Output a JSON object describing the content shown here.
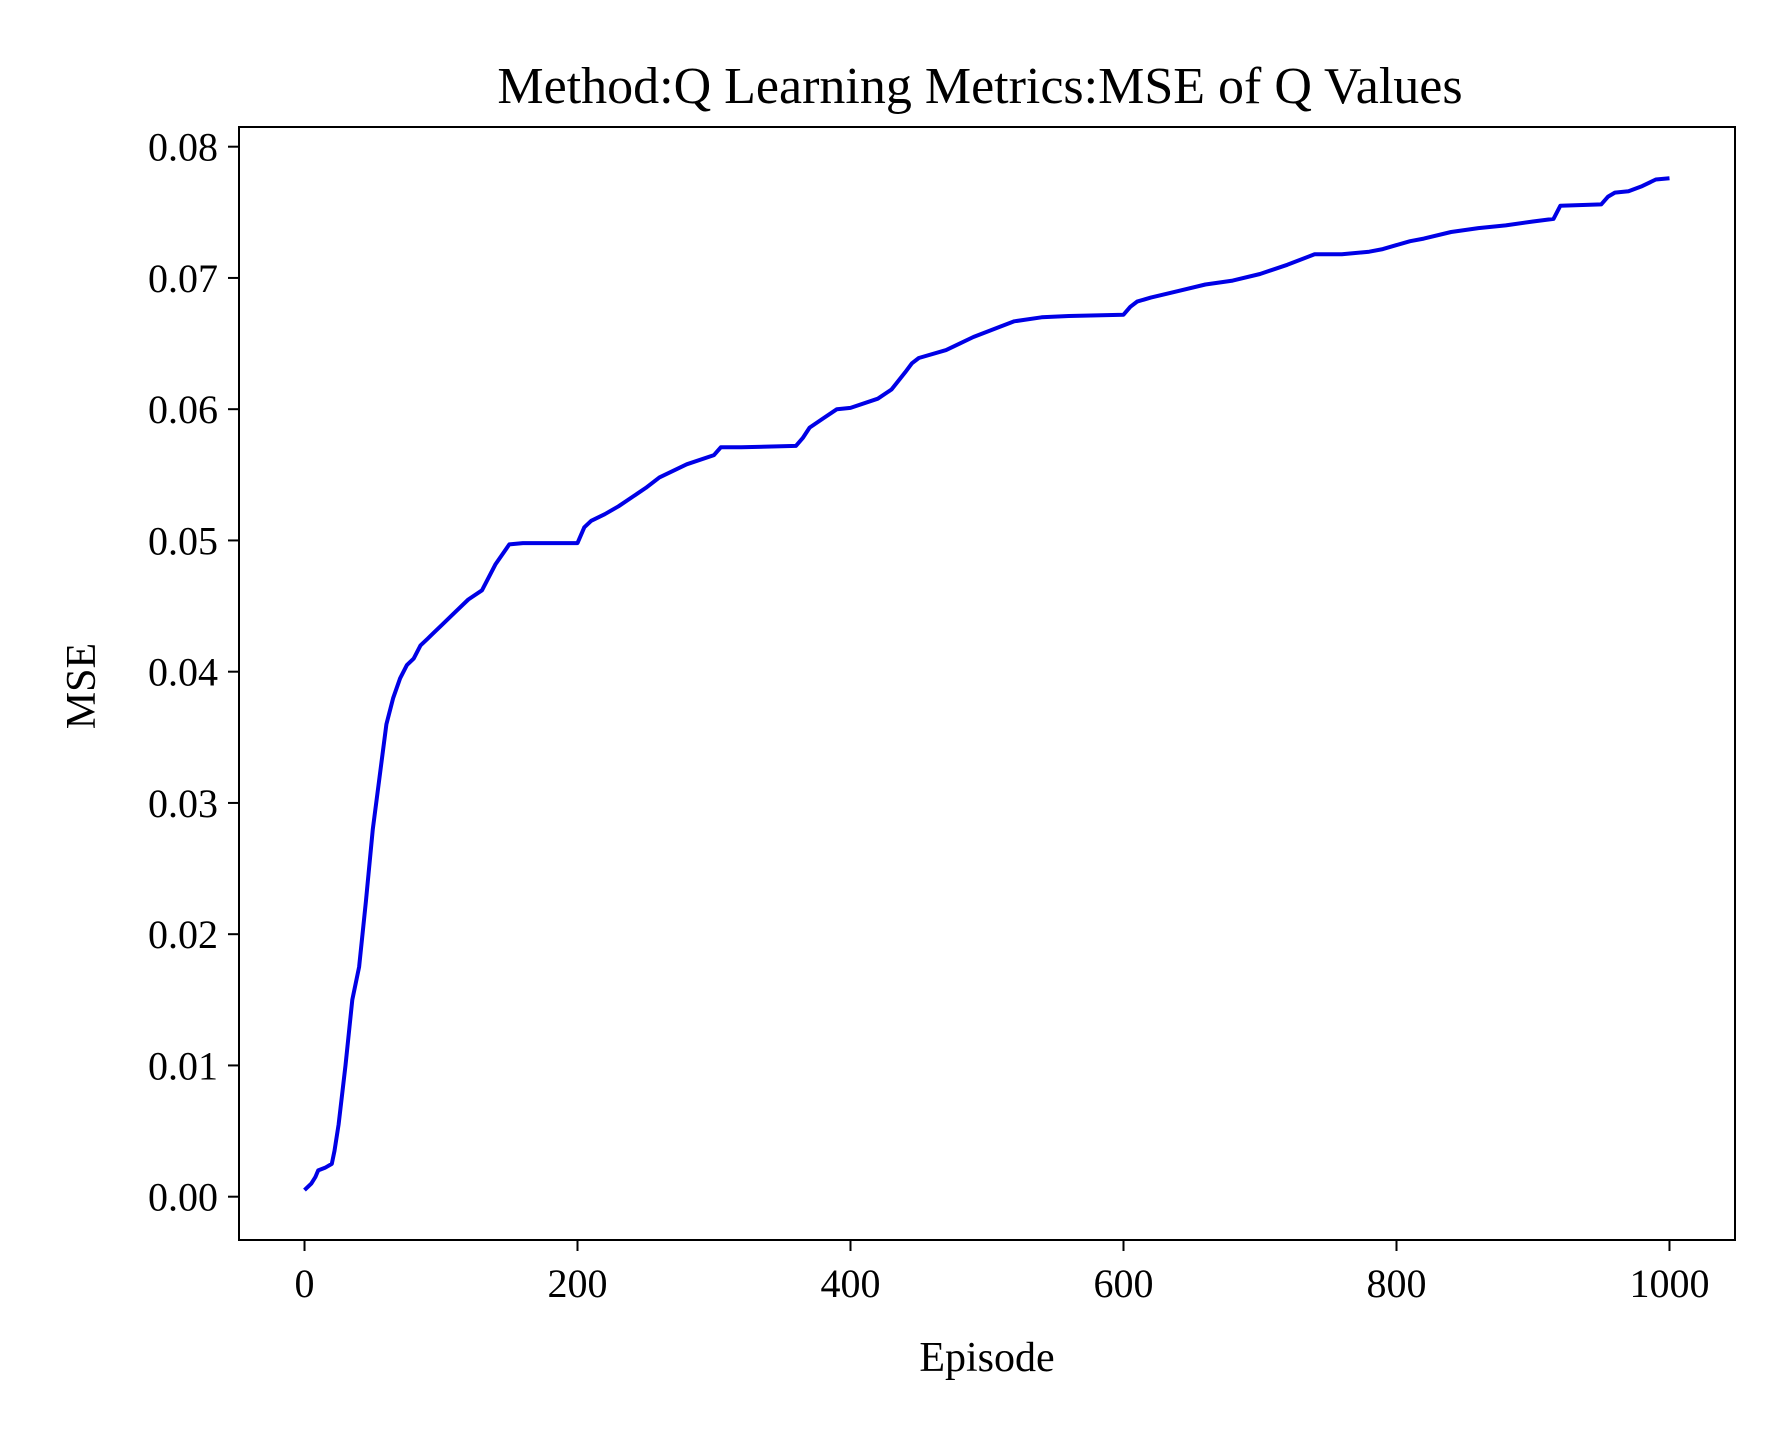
{
  "chart_data": {
    "type": "line",
    "title": "Method:Q Learning   Metrics:MSE of Q Values",
    "xlabel": "Episode",
    "ylabel": "MSE",
    "xlim": [
      -48,
      1048
    ],
    "ylim": [
      -0.0033,
      0.0815
    ],
    "xticks": [
      0,
      200,
      400,
      600,
      800,
      1000
    ],
    "yticks": [
      0.0,
      0.01,
      0.02,
      0.03,
      0.04,
      0.05,
      0.06,
      0.07,
      0.08
    ],
    "xtick_labels": [
      "0",
      "200",
      "400",
      "600",
      "800",
      "1000"
    ],
    "ytick_labels": [
      "0.00",
      "0.01",
      "0.02",
      "0.03",
      "0.04",
      "0.05",
      "0.06",
      "0.07",
      "0.08"
    ],
    "grid": false,
    "legend": "none",
    "series": [
      {
        "color": "#0000e6",
        "x": [
          0,
          5,
          8,
          10,
          15,
          20,
          22,
          25,
          30,
          35,
          40,
          45,
          50,
          55,
          60,
          65,
          70,
          75,
          80,
          85,
          90,
          95,
          100,
          110,
          120,
          130,
          140,
          150,
          160,
          200,
          205,
          210,
          220,
          230,
          250,
          260,
          280,
          300,
          305,
          320,
          360,
          365,
          370,
          380,
          390,
          400,
          420,
          430,
          440,
          445,
          450,
          470,
          480,
          490,
          510,
          520,
          540,
          560,
          600,
          605,
          610,
          620,
          640,
          660,
          680,
          700,
          720,
          740,
          760,
          780,
          790,
          800,
          810,
          820,
          840,
          860,
          880,
          900,
          915,
          920,
          950,
          955,
          960,
          970,
          980,
          990,
          1000
        ],
        "y": [
          0.0005,
          0.001,
          0.0015,
          0.002,
          0.0022,
          0.0025,
          0.0035,
          0.0055,
          0.01,
          0.015,
          0.0175,
          0.0225,
          0.028,
          0.032,
          0.036,
          0.038,
          0.0395,
          0.0405,
          0.041,
          0.042,
          0.0425,
          0.043,
          0.0435,
          0.0445,
          0.0455,
          0.0462,
          0.0482,
          0.0497,
          0.0498,
          0.0498,
          0.051,
          0.0515,
          0.052,
          0.0526,
          0.054,
          0.0548,
          0.0558,
          0.0565,
          0.0571,
          0.0571,
          0.0572,
          0.0578,
          0.0586,
          0.0593,
          0.06,
          0.0601,
          0.0608,
          0.0615,
          0.0628,
          0.0635,
          0.0639,
          0.0645,
          0.065,
          0.0655,
          0.0663,
          0.0667,
          0.067,
          0.0671,
          0.0672,
          0.0678,
          0.0682,
          0.0685,
          0.069,
          0.0695,
          0.0698,
          0.0703,
          0.071,
          0.0718,
          0.0718,
          0.072,
          0.0722,
          0.0725,
          0.0728,
          0.073,
          0.0735,
          0.0738,
          0.074,
          0.0743,
          0.0745,
          0.0755,
          0.0756,
          0.0762,
          0.0765,
          0.0766,
          0.077,
          0.0775,
          0.0776
        ]
      }
    ]
  }
}
